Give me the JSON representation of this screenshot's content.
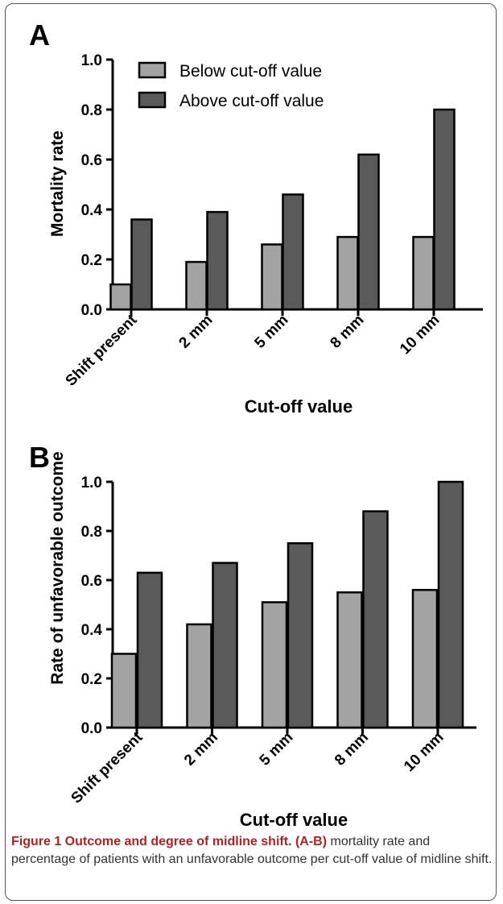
{
  "colors": {
    "below": "#a3a3a3",
    "above": "#5a5a5a",
    "caption_accent": "#b52025"
  },
  "chart_data": [
    {
      "panel_label": "A",
      "type": "bar",
      "categories": [
        "Shift present",
        "2 mm",
        "5 mm",
        "8 mm",
        "10 mm"
      ],
      "series": [
        {
          "name": "Below cut-off value",
          "values": [
            0.1,
            0.19,
            0.26,
            0.29,
            0.29
          ]
        },
        {
          "name": "Above cut-off value",
          "values": [
            0.36,
            0.39,
            0.46,
            0.62,
            0.8
          ]
        }
      ],
      "ylabel": "Mortality rate",
      "xlabel": "Cut-off value",
      "ylim": [
        0,
        1.0
      ],
      "yticks": [
        "0.0",
        "0.2",
        "0.4",
        "0.6",
        "0.8",
        "1.0"
      ],
      "legend": "top-left"
    },
    {
      "panel_label": "B",
      "type": "bar",
      "categories": [
        "Shift present",
        "2 mm",
        "5 mm",
        "8 mm",
        "10 mm"
      ],
      "series": [
        {
          "name": "Below cut-off value",
          "values": [
            0.3,
            0.42,
            0.51,
            0.55,
            0.56
          ]
        },
        {
          "name": "Above cut-off value",
          "values": [
            0.63,
            0.67,
            0.75,
            0.88,
            1.0
          ]
        }
      ],
      "ylabel": "Rate of unfavorable outcome",
      "xlabel": "Cut-off value",
      "ylim": [
        0,
        1.0
      ],
      "yticks": [
        "0.0",
        "0.2",
        "0.4",
        "0.6",
        "0.8",
        "1.0"
      ],
      "legend": "none"
    }
  ],
  "caption": {
    "title": "Figure 1 Outcome and degree of midline shift.",
    "lead": "(A-B)",
    "body": "mortality rate and percentage of patients with an unfavorable outcome per cut-off value of midline shift."
  }
}
